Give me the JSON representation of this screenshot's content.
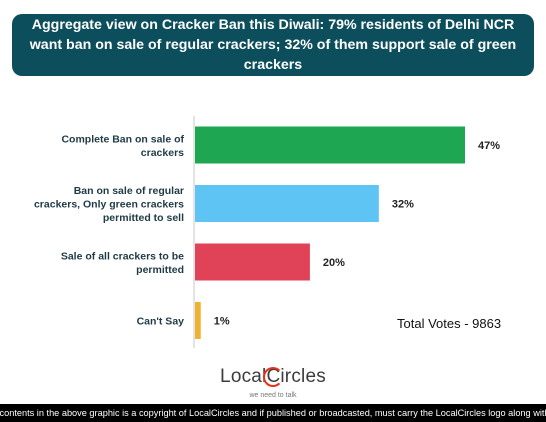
{
  "title": "Aggregate view on Cracker Ban this Diwali: 79% residents of Delhi NCR want ban on sale of regular crackers; 32% of them support sale of green crackers",
  "chart_data": {
    "type": "bar",
    "orientation": "horizontal",
    "categories": [
      [
        "Complete Ban on sale of",
        "crackers"
      ],
      [
        "Ban on sale of regular",
        "crackers, Only green crackers",
        "permitted to sell"
      ],
      [
        "Sale of all crackers to be",
        "permitted"
      ],
      [
        "Can't Say"
      ]
    ],
    "values": [
      47,
      32,
      20,
      1
    ],
    "value_labels": [
      "47%",
      "32%",
      "20%",
      "1%"
    ],
    "colors": [
      "#1fa653",
      "#5ec4f4",
      "#e04258",
      "#efb233"
    ],
    "unit": "%",
    "xlim": [
      0,
      47
    ],
    "grid": false,
    "legend": "none"
  },
  "total_votes": "Total Votes - 9863",
  "logo": {
    "text_before": "Local",
    "text_c": "C",
    "text_after": "ircles",
    "tagline": "we need to talk"
  },
  "footer": "All contents in the above graphic is a copyright of LocalCircles and if published or broadcasted, must carry the LocalCircles logo along with it."
}
